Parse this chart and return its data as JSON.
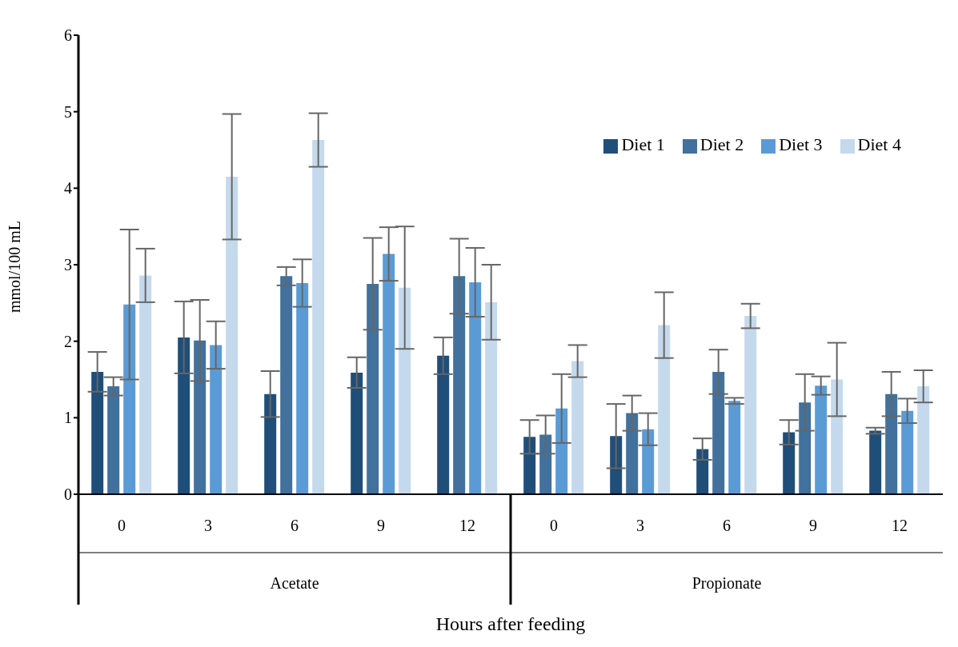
{
  "chart_data": {
    "type": "bar",
    "xlabel": "Hours after feeding",
    "ylabel": "mmol/100 mL",
    "categories": [
      "0",
      "3",
      "6",
      "9",
      "12",
      "0",
      "3",
      "6",
      "9",
      "12"
    ],
    "annotations": [
      "Acetate",
      "Propionate"
    ],
    "ylim": [
      0,
      6
    ],
    "yticks": [
      0,
      1,
      2,
      3,
      4,
      5,
      6
    ],
    "legend": "top right",
    "series": [
      {
        "name": "Diet 1",
        "color": "#1f4e79",
        "values": [
          1.6,
          2.05,
          1.31,
          1.59,
          1.81,
          0.75,
          0.76,
          0.59,
          0.81,
          0.83
        ],
        "errors": [
          0.26,
          0.47,
          0.3,
          0.2,
          0.24,
          0.22,
          0.42,
          0.14,
          0.16,
          0.04
        ]
      },
      {
        "name": "Diet 2",
        "color": "#41719c",
        "values": [
          1.41,
          2.01,
          2.85,
          2.75,
          2.85,
          0.78,
          1.06,
          1.6,
          1.2,
          1.31
        ],
        "errors": [
          0.12,
          0.53,
          0.12,
          0.6,
          0.49,
          0.25,
          0.23,
          0.29,
          0.37,
          0.29
        ]
      },
      {
        "name": "Diet 3",
        "color": "#5b9bd5",
        "values": [
          2.48,
          1.95,
          2.76,
          3.14,
          2.77,
          1.12,
          0.85,
          1.22,
          1.42,
          1.09
        ],
        "errors": [
          0.98,
          0.31,
          0.31,
          0.35,
          0.45,
          0.45,
          0.21,
          0.04,
          0.12,
          0.16
        ]
      },
      {
        "name": "Diet 4",
        "color": "#c5d9ed",
        "values": [
          2.86,
          4.15,
          4.63,
          2.7,
          2.51,
          1.74,
          2.21,
          2.33,
          1.5,
          1.41
        ],
        "errors": [
          0.35,
          0.82,
          0.35,
          0.8,
          0.49,
          0.21,
          0.43,
          0.16,
          0.48,
          0.21
        ]
      }
    ]
  }
}
